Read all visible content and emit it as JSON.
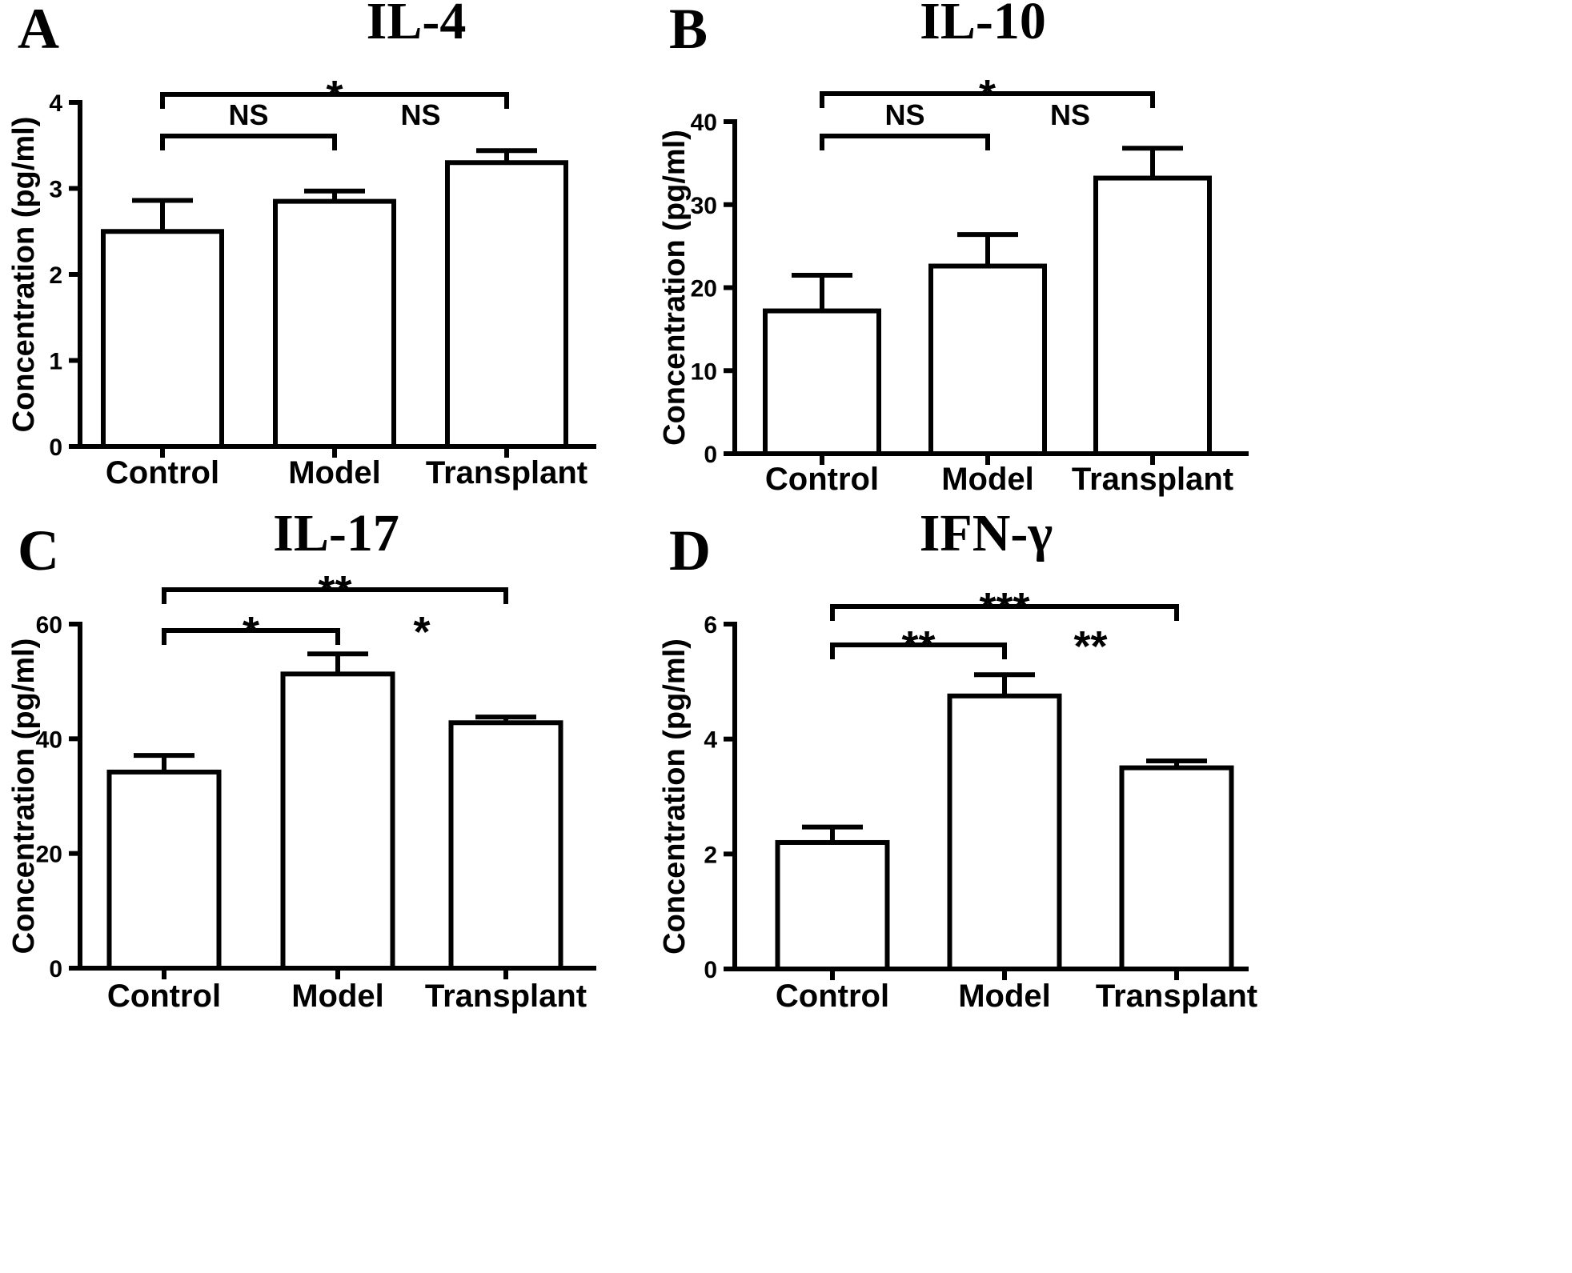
{
  "chart_data": [
    {
      "panel": "A",
      "type": "bar",
      "title": "IL-4",
      "ylabel": "Concentration (pg/ml)",
      "xlabel": "",
      "categories": [
        "Control",
        "Model",
        "Transplant"
      ],
      "values": [
        2.5,
        2.85,
        3.3
      ],
      "errors": [
        0.36,
        0.12,
        0.14
      ],
      "ylim": [
        0,
        4
      ],
      "yticks": [
        0,
        1,
        2,
        3,
        4
      ],
      "significance": [
        {
          "from": 0,
          "to": 1,
          "label": "NS",
          "level": 1
        },
        {
          "from": 1,
          "to": 2,
          "label": "NS",
          "level": 1
        },
        {
          "from": 0,
          "to": 2,
          "label": "*",
          "level": 2
        }
      ]
    },
    {
      "panel": "B",
      "type": "bar",
      "title": "IL-10",
      "ylabel": "Concentration (pg/ml)",
      "xlabel": "",
      "categories": [
        "Control",
        "Model",
        "Transplant"
      ],
      "values": [
        17.2,
        22.6,
        33.2
      ],
      "errors": [
        4.3,
        3.8,
        3.6
      ],
      "ylim": [
        0,
        40
      ],
      "yticks": [
        0,
        10,
        20,
        30,
        40
      ],
      "significance": [
        {
          "from": 0,
          "to": 1,
          "label": "NS",
          "level": 1
        },
        {
          "from": 1,
          "to": 2,
          "label": "NS",
          "level": 1
        },
        {
          "from": 0,
          "to": 2,
          "label": "*",
          "level": 2
        }
      ]
    },
    {
      "panel": "C",
      "type": "bar",
      "title": "IL-17",
      "ylabel": "Concentration (pg/ml)",
      "xlabel": "",
      "categories": [
        "Control",
        "Model",
        "Transplant"
      ],
      "values": [
        34.2,
        51.3,
        42.8
      ],
      "errors": [
        2.9,
        3.5,
        1.0
      ],
      "ylim": [
        0,
        60
      ],
      "yticks": [
        0,
        20,
        40,
        60
      ],
      "significance": [
        {
          "from": 0,
          "to": 1,
          "label": "*",
          "level": 1
        },
        {
          "from": 1,
          "to": 2,
          "label": "*",
          "level": 1
        },
        {
          "from": 0,
          "to": 2,
          "label": "**",
          "level": 2
        }
      ]
    },
    {
      "panel": "D",
      "type": "bar",
      "title": "IFN-γ",
      "ylabel": "Concentration (pg/ml)",
      "xlabel": "",
      "categories": [
        "Control",
        "Model",
        "Transplant"
      ],
      "values": [
        2.2,
        4.75,
        3.5
      ],
      "errors": [
        0.27,
        0.37,
        0.12
      ],
      "ylim": [
        0,
        6
      ],
      "yticks": [
        0,
        2,
        4,
        6
      ],
      "significance": [
        {
          "from": 0,
          "to": 1,
          "label": "**",
          "level": 1
        },
        {
          "from": 1,
          "to": 2,
          "label": "**",
          "level": 1
        },
        {
          "from": 0,
          "to": 2,
          "label": "***",
          "level": 2
        }
      ]
    }
  ]
}
